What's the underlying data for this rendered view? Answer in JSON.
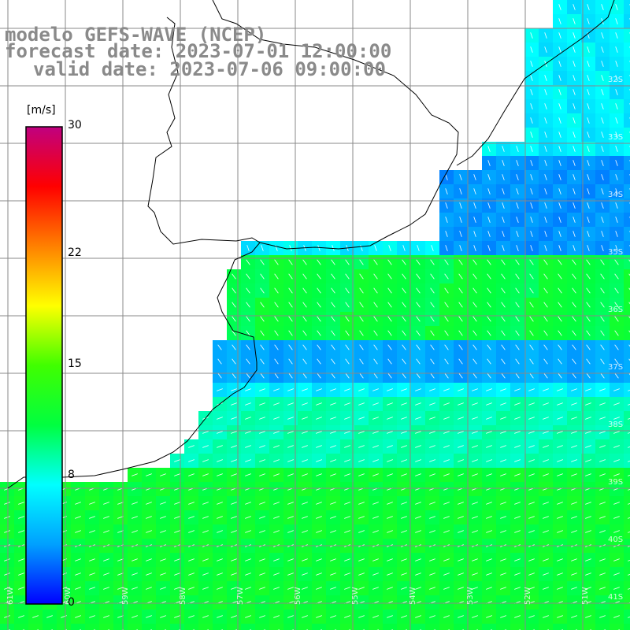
{
  "title": {
    "line1": "modelo GEFS-WAVE (NCEP)",
    "line2": "forecast date: 2023-07-01 12:00:00",
    "line3": "valid date: 2023-07-06 09:00:00"
  },
  "colorbar": {
    "units": "[m/s]",
    "ticks": [
      {
        "label": "30",
        "value": 30
      },
      {
        "label": "22",
        "value": 22
      },
      {
        "label": "15",
        "value": 15
      },
      {
        "label": "8",
        "value": 8
      },
      {
        "label": "0",
        "value": 0
      }
    ],
    "stops": [
      "#0000ff",
      "#00a0ff",
      "#00ffff",
      "#00ff40",
      "#40ff00",
      "#ffff00",
      "#ff8000",
      "#ff0000",
      "#c00080"
    ]
  },
  "lat_labels": [
    "32S",
    "33S",
    "34S",
    "35S",
    "36S",
    "37S",
    "38S",
    "39S",
    "40S",
    "41S"
  ],
  "lon_labels": [
    "61W",
    "60W",
    "59W",
    "58W",
    "57W",
    "56W",
    "55W",
    "54W",
    "53W",
    "52W",
    "51W"
  ],
  "colors": {
    "land": "#ffffff",
    "coast": "#000000",
    "grid": "#888888",
    "arrow": "#ffffff"
  }
}
